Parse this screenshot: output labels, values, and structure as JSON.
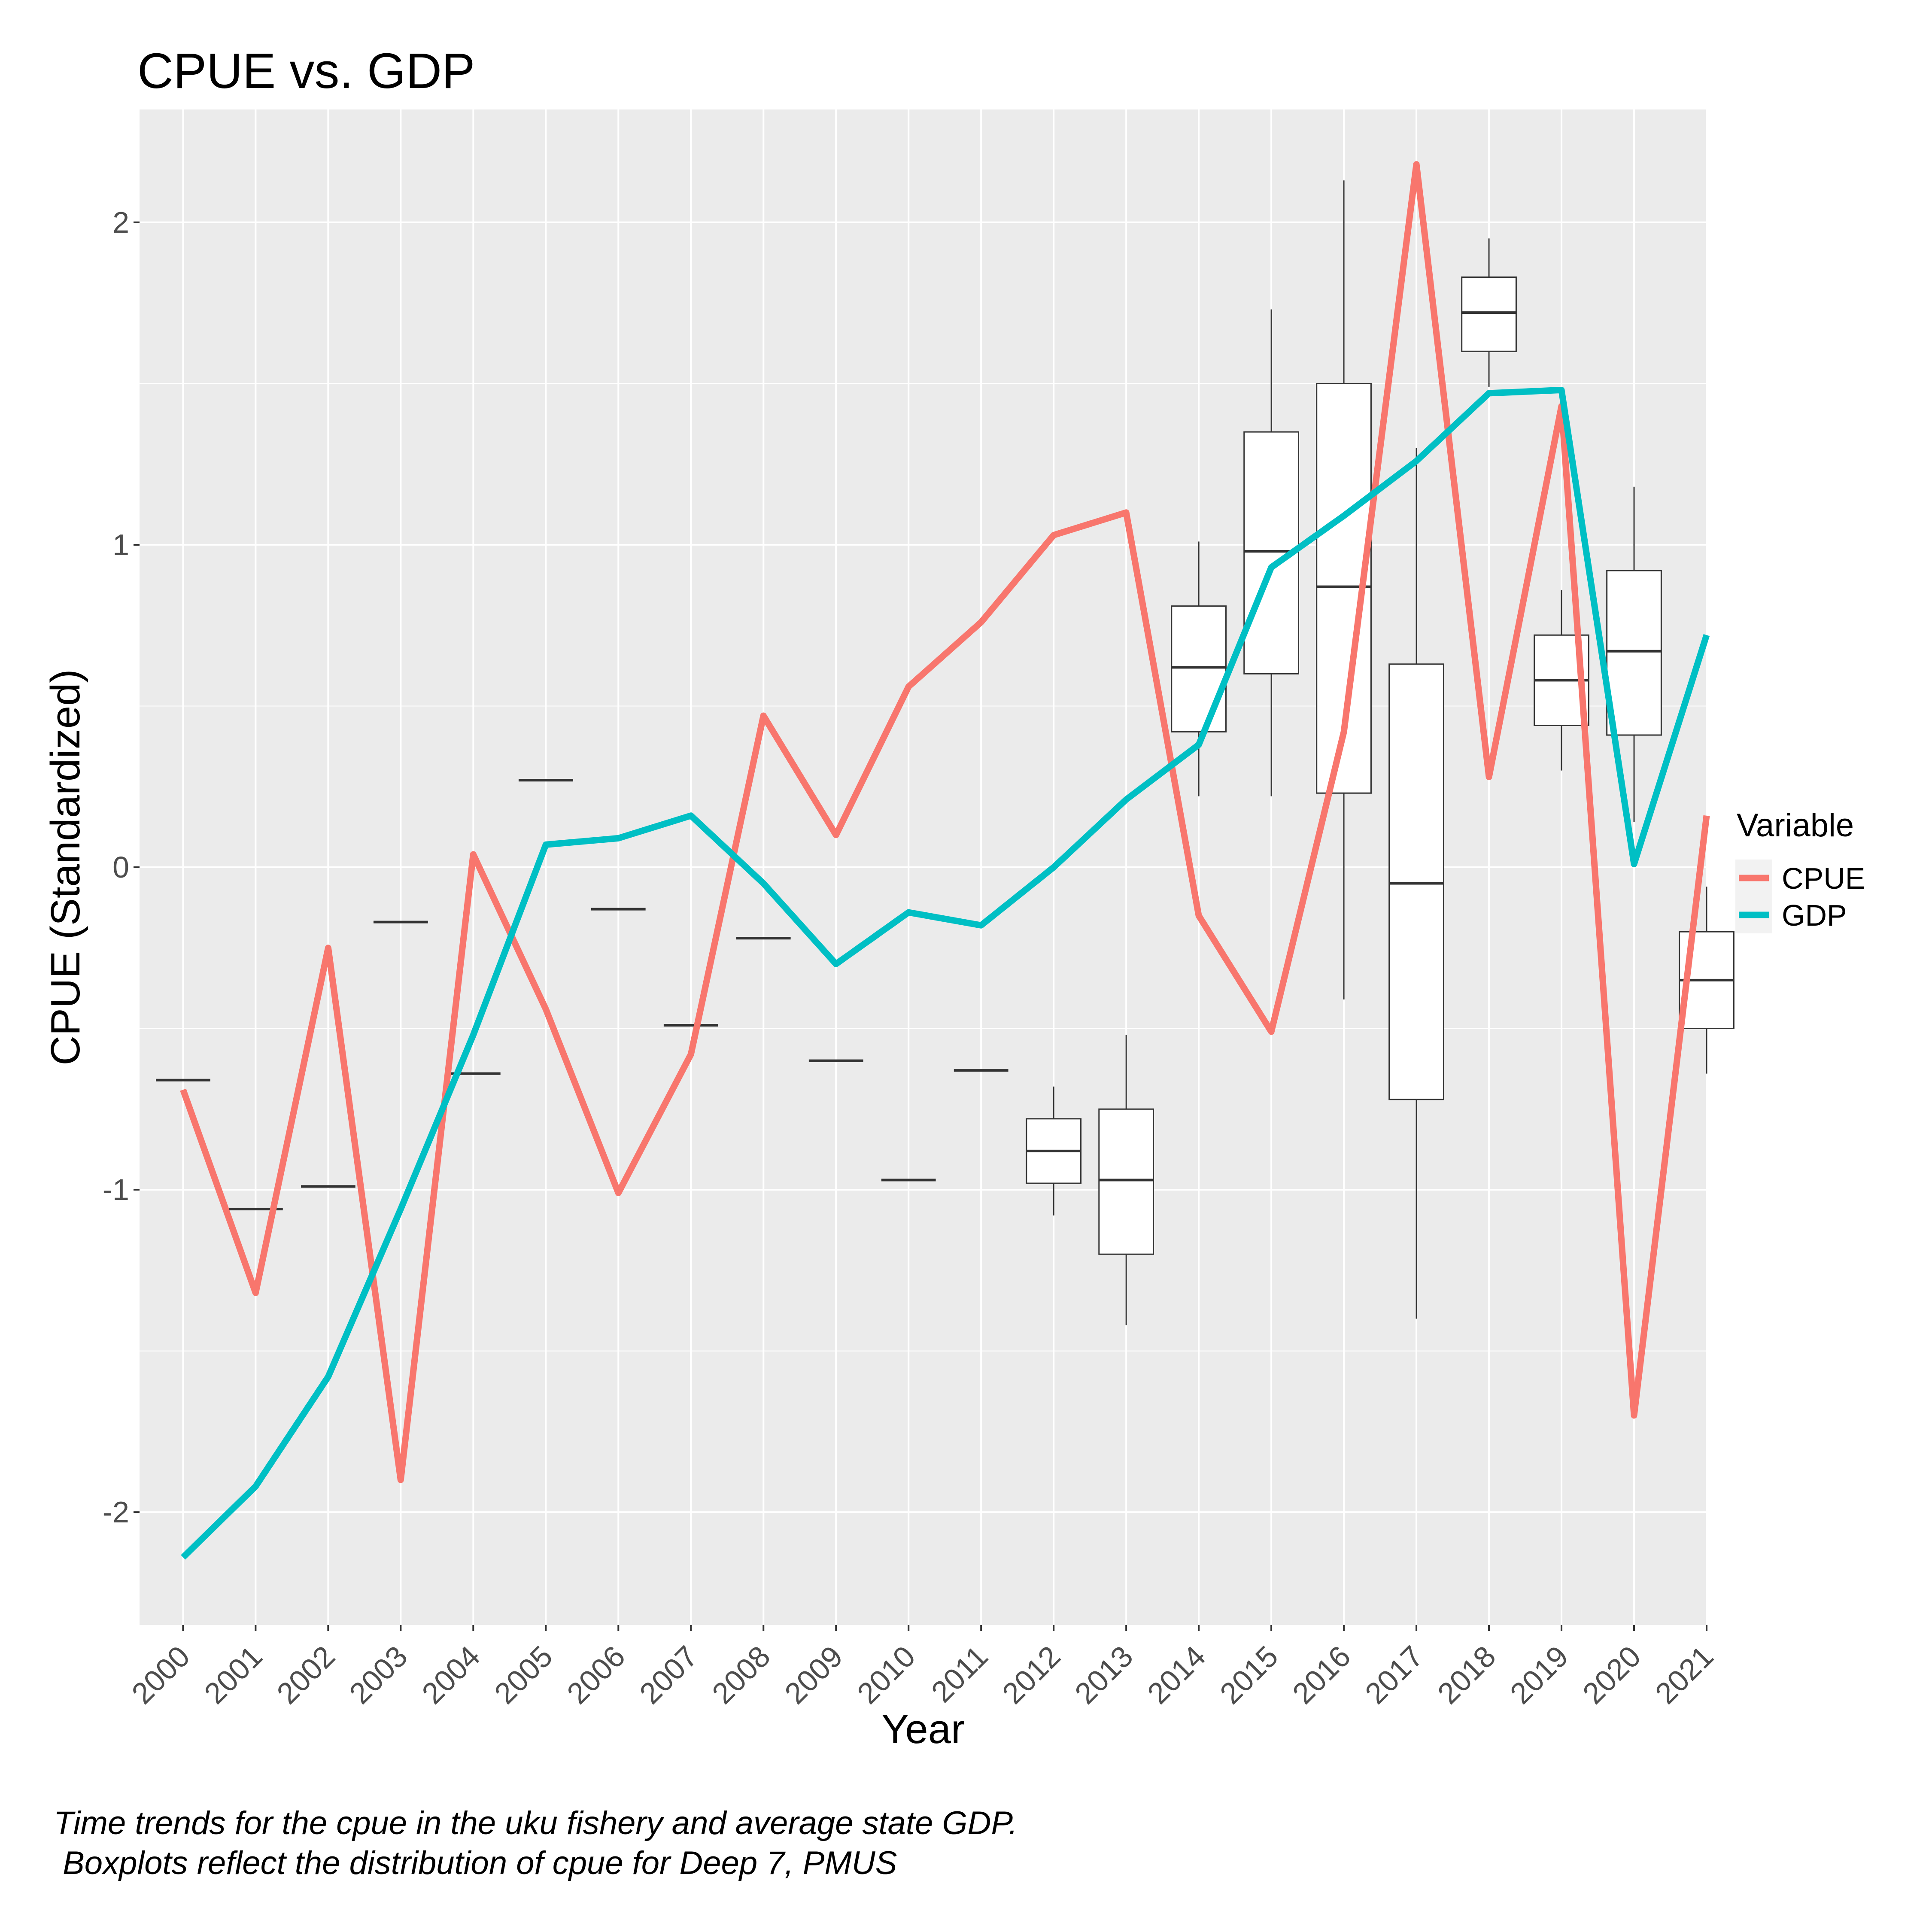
{
  "chart_data": {
    "type": "line",
    "title": "CPUE vs. GDP",
    "xlabel": "Year",
    "ylabel": "CPUE (Standardized)",
    "ylim": [
      -2.35,
      2.35
    ],
    "y_ticks": [
      -2,
      -1,
      0,
      1,
      2
    ],
    "grid": true,
    "legend_position": "right",
    "legend_title": "Variable",
    "categories": [
      "2000",
      "2001",
      "2002",
      "2003",
      "2004",
      "2005",
      "2006",
      "2007",
      "2008",
      "2009",
      "2010",
      "2011",
      "2012",
      "2013",
      "2014",
      "2015",
      "2016",
      "2017",
      "2018",
      "2019",
      "2020",
      "2021"
    ],
    "series": [
      {
        "name": "CPUE",
        "color": "#F8766D",
        "values": [
          -0.69,
          -1.32,
          -0.25,
          -1.9,
          0.04,
          -0.44,
          -1.01,
          -0.58,
          0.47,
          0.1,
          0.56,
          0.76,
          1.03,
          1.1,
          -0.15,
          -0.51,
          0.42,
          2.18,
          0.28,
          1.43,
          -1.7,
          0.16
        ]
      },
      {
        "name": "GDP",
        "color": "#00BFC4",
        "values": [
          -2.14,
          -1.92,
          -1.58,
          -1.06,
          -0.52,
          0.07,
          0.09,
          0.16,
          -0.05,
          -0.3,
          -0.14,
          -0.18,
          0.0,
          0.21,
          0.38,
          0.93,
          1.09,
          1.26,
          1.47,
          1.48,
          0.01,
          0.72
        ]
      }
    ],
    "boxplots": [
      {
        "year": "2000",
        "min": -0.66,
        "q1": -0.66,
        "median": -0.66,
        "q3": -0.66,
        "max": -0.66
      },
      {
        "year": "2001",
        "min": -1.06,
        "q1": -1.06,
        "median": -1.06,
        "q3": -1.06,
        "max": -1.06
      },
      {
        "year": "2002",
        "min": -0.99,
        "q1": -0.99,
        "median": -0.99,
        "q3": -0.99,
        "max": -0.99
      },
      {
        "year": "2003",
        "min": -0.17,
        "q1": -0.17,
        "median": -0.17,
        "q3": -0.17,
        "max": -0.17
      },
      {
        "year": "2004",
        "min": -0.64,
        "q1": -0.64,
        "median": -0.64,
        "q3": -0.64,
        "max": -0.64
      },
      {
        "year": "2005",
        "min": 0.27,
        "q1": 0.27,
        "median": 0.27,
        "q3": 0.27,
        "max": 0.27
      },
      {
        "year": "2006",
        "min": -0.13,
        "q1": -0.13,
        "median": -0.13,
        "q3": -0.13,
        "max": -0.13
      },
      {
        "year": "2007",
        "min": -0.49,
        "q1": -0.49,
        "median": -0.49,
        "q3": -0.49,
        "max": -0.49
      },
      {
        "year": "2008",
        "min": -0.22,
        "q1": -0.22,
        "median": -0.22,
        "q3": -0.22,
        "max": -0.22
      },
      {
        "year": "2009",
        "min": -0.6,
        "q1": -0.6,
        "median": -0.6,
        "q3": -0.6,
        "max": -0.6
      },
      {
        "year": "2010",
        "min": -0.97,
        "q1": -0.97,
        "median": -0.97,
        "q3": -0.97,
        "max": -0.97
      },
      {
        "year": "2011",
        "min": -0.63,
        "q1": -0.63,
        "median": -0.63,
        "q3": -0.63,
        "max": -0.63
      },
      {
        "year": "2012",
        "min": -1.08,
        "q1": -0.98,
        "median": -0.88,
        "q3": -0.78,
        "max": -0.68
      },
      {
        "year": "2013",
        "min": -1.42,
        "q1": -1.2,
        "median": -0.97,
        "q3": -0.75,
        "max": -0.52
      },
      {
        "year": "2014",
        "min": 0.22,
        "q1": 0.42,
        "median": 0.62,
        "q3": 0.81,
        "max": 1.01
      },
      {
        "year": "2015",
        "min": 0.22,
        "q1": 0.6,
        "median": 0.98,
        "q3": 1.35,
        "max": 1.73
      },
      {
        "year": "2016",
        "min": -0.41,
        "q1": 0.23,
        "median": 0.87,
        "q3": 1.5,
        "max": 2.13
      },
      {
        "year": "2017",
        "min": -1.4,
        "q1": -0.72,
        "median": -0.05,
        "q3": 0.63,
        "max": 1.3
      },
      {
        "year": "2018",
        "min": 1.49,
        "q1": 1.6,
        "median": 1.72,
        "q3": 1.83,
        "max": 1.95
      },
      {
        "year": "2019",
        "min": 0.3,
        "q1": 0.44,
        "median": 0.58,
        "q3": 0.72,
        "max": 0.86
      },
      {
        "year": "2020",
        "min": 0.14,
        "q1": 0.41,
        "median": 0.67,
        "q3": 0.92,
        "max": 1.18
      },
      {
        "year": "2021",
        "min": -0.64,
        "q1": -0.5,
        "median": -0.35,
        "q3": -0.2,
        "max": -0.06
      }
    ],
    "caption_lines": [
      "Time trends for the cpue in the uku fishery and average state GDP.",
      " Boxplots reflect the distribution of cpue for Deep 7, PMUS"
    ]
  }
}
